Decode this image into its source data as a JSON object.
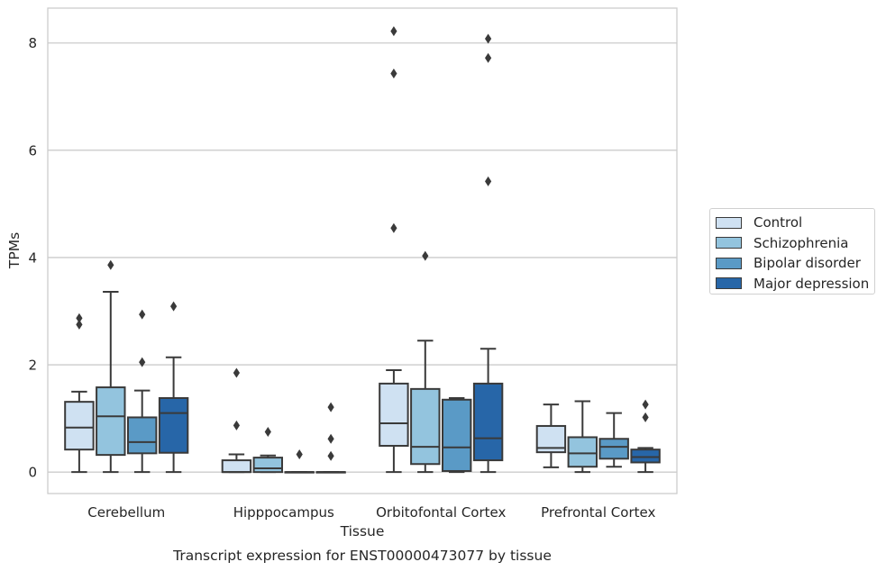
{
  "chart_data": {
    "type": "box",
    "title": "Transcript expression for ENST00000473077 by tissue",
    "xlabel": "Tissue",
    "ylabel": "TPMs",
    "ylim": [
      -0.4,
      8.65
    ],
    "yticks": [
      0,
      2,
      4,
      6,
      8
    ],
    "grid": "horizontal",
    "legend_position": "right",
    "categories": [
      "Cerebellum",
      "Hipppocampus",
      "Orbitofontal Cortex",
      "Prefrontal Cortex"
    ],
    "series": [
      {
        "name": "Control",
        "color": "#cfe1f2",
        "boxes": [
          {
            "whislo": 0,
            "q1": 0.42,
            "med": 0.83,
            "q3": 1.31,
            "whishi": 1.5,
            "fliers": [
              2.75,
              2.87
            ]
          },
          {
            "whislo": 0,
            "q1": 0,
            "med": 0,
            "q3": 0.22,
            "whishi": 0.33,
            "fliers": [
              0.87,
              1.85
            ]
          },
          {
            "whislo": 0,
            "q1": 0.49,
            "med": 0.91,
            "q3": 1.65,
            "whishi": 1.9,
            "fliers": [
              4.55,
              7.43,
              8.22
            ]
          },
          {
            "whislo": 0.09,
            "q1": 0.37,
            "med": 0.45,
            "q3": 0.86,
            "whishi": 1.26,
            "fliers": []
          }
        ]
      },
      {
        "name": "Schizophrenia",
        "color": "#93c4de",
        "boxes": [
          {
            "whislo": 0,
            "q1": 0.32,
            "med": 1.04,
            "q3": 1.58,
            "whishi": 3.36,
            "fliers": [
              3.86
            ]
          },
          {
            "whislo": 0,
            "q1": 0,
            "med": 0.07,
            "q3": 0.27,
            "whishi": 0.31,
            "fliers": [
              0.75
            ]
          },
          {
            "whislo": 0,
            "q1": 0.15,
            "med": 0.47,
            "q3": 1.55,
            "whishi": 2.45,
            "fliers": [
              4.03
            ]
          },
          {
            "whislo": 0,
            "q1": 0.1,
            "med": 0.35,
            "q3": 0.65,
            "whishi": 1.32,
            "fliers": []
          }
        ]
      },
      {
        "name": "Bipolar disorder",
        "color": "#5a9ac6",
        "boxes": [
          {
            "whislo": 0,
            "q1": 0.35,
            "med": 0.56,
            "q3": 1.02,
            "whishi": 1.52,
            "fliers": [
              2.05,
              2.94
            ]
          },
          {
            "whislo": 0,
            "q1": 0,
            "med": 0,
            "q3": 0,
            "whishi": 0,
            "fliers": [
              0.33
            ]
          },
          {
            "whislo": 0,
            "q1": 0.02,
            "med": 0.46,
            "q3": 1.35,
            "whishi": 1.38,
            "fliers": []
          },
          {
            "whislo": 0.1,
            "q1": 0.25,
            "med": 0.47,
            "q3": 0.62,
            "whishi": 1.1,
            "fliers": []
          }
        ]
      },
      {
        "name": "Major depression",
        "color": "#2766a8",
        "boxes": [
          {
            "whislo": 0,
            "q1": 0.36,
            "med": 1.1,
            "q3": 1.38,
            "whishi": 2.14,
            "fliers": [
              3.09
            ]
          },
          {
            "whislo": 0,
            "q1": 0,
            "med": 0,
            "q3": 0,
            "whishi": 0,
            "fliers": [
              0.3,
              0.62,
              1.21
            ]
          },
          {
            "whislo": 0,
            "q1": 0.22,
            "med": 0.63,
            "q3": 1.65,
            "whishi": 2.3,
            "fliers": [
              5.42,
              7.72,
              8.08
            ]
          },
          {
            "whislo": 0,
            "q1": 0.18,
            "med": 0.28,
            "q3": 0.42,
            "whishi": 0.45,
            "fliers": [
              1.02,
              1.26
            ]
          }
        ]
      }
    ]
  }
}
